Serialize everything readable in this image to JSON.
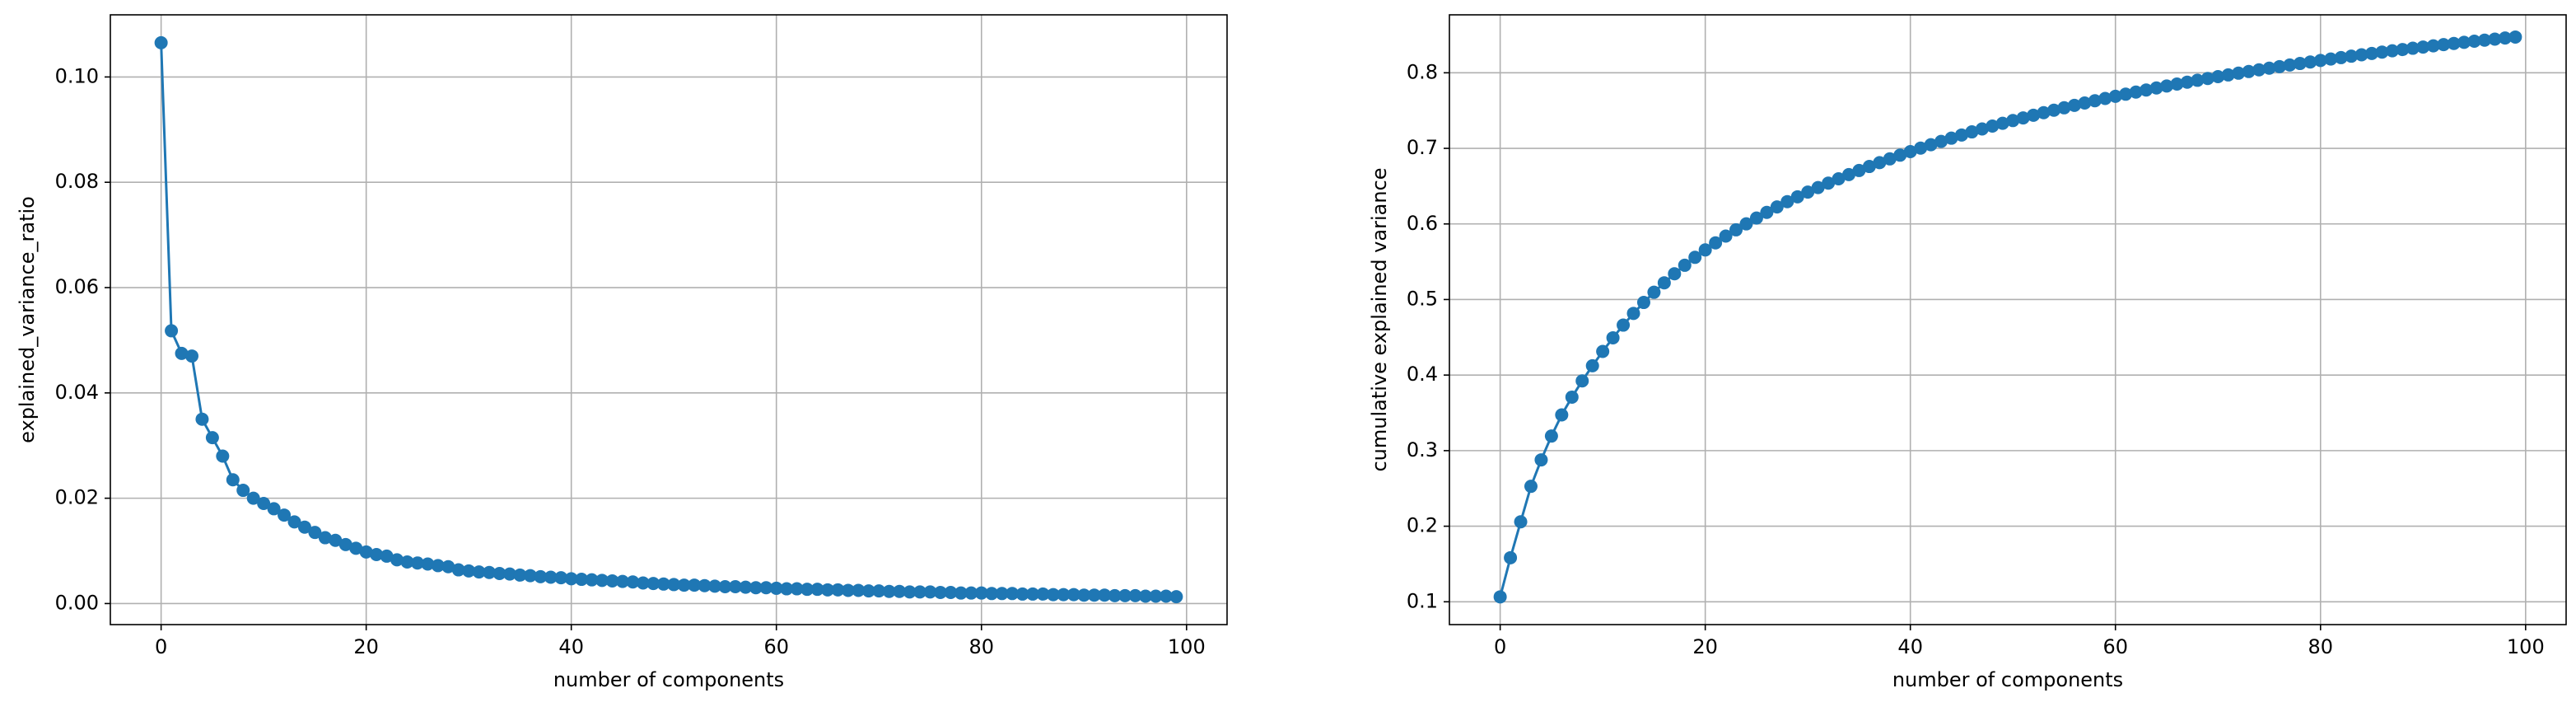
{
  "chart_data": [
    {
      "type": "line",
      "xlabel": "number of components",
      "ylabel": "explained_variance_ratio",
      "grid": true,
      "xlim": [
        -4.95,
        103.95
      ],
      "xticks": [
        0,
        20,
        40,
        60,
        80,
        100
      ],
      "ylim": [
        -0.004,
        0.1118
      ],
      "yticks": [
        {
          "value": 0,
          "label": "0.00"
        },
        {
          "value": 0.02,
          "label": "0.02"
        },
        {
          "value": 0.04,
          "label": "0.04"
        },
        {
          "value": 0.06,
          "label": "0.06"
        },
        {
          "value": 0.08,
          "label": "0.08"
        },
        {
          "value": 0.1,
          "label": "0.10"
        }
      ],
      "x": [
        0,
        1,
        2,
        3,
        4,
        5,
        6,
        7,
        8,
        9,
        10,
        11,
        12,
        13,
        14,
        15,
        16,
        17,
        18,
        19,
        20,
        21,
        22,
        23,
        24,
        25,
        26,
        27,
        28,
        29,
        30,
        31,
        32,
        33,
        34,
        35,
        36,
        37,
        38,
        39,
        40,
        41,
        42,
        43,
        44,
        45,
        46,
        47,
        48,
        49,
        50,
        51,
        52,
        53,
        54,
        55,
        56,
        57,
        58,
        59,
        60,
        61,
        62,
        63,
        64,
        65,
        66,
        67,
        68,
        69,
        70,
        71,
        72,
        73,
        74,
        75,
        76,
        77,
        78,
        79,
        80,
        81,
        82,
        83,
        84,
        85,
        86,
        87,
        88,
        89,
        90,
        91,
        92,
        93,
        94,
        95,
        96,
        97,
        98,
        99
      ],
      "series": [
        {
          "color": "#1f77b4",
          "values": [
            0.1065,
            0.0518,
            0.0475,
            0.047,
            0.035,
            0.0315,
            0.028,
            0.0235,
            0.0215,
            0.02,
            0.019,
            0.018,
            0.0168,
            0.0155,
            0.0145,
            0.0135,
            0.0125,
            0.012,
            0.0112,
            0.0105,
            0.0098,
            0.0093,
            0.009,
            0.0083,
            0.0079,
            0.0077,
            0.0075,
            0.0072,
            0.007,
            0.0064,
            0.0062,
            0.006,
            0.0059,
            0.0057,
            0.0056,
            0.0054,
            0.0053,
            0.0051,
            0.005,
            0.0049,
            0.0047,
            0.0046,
            0.0045,
            0.0044,
            0.0043,
            0.0042,
            0.0041,
            0.0039,
            0.0038,
            0.0037,
            0.0036,
            0.0035,
            0.0035,
            0.0034,
            0.0033,
            0.0032,
            0.0032,
            0.0031,
            0.003,
            0.003,
            0.0029,
            0.0028,
            0.0028,
            0.0027,
            0.0027,
            0.0026,
            0.0026,
            0.0025,
            0.0025,
            0.0024,
            0.0024,
            0.0023,
            0.0023,
            0.0022,
            0.0022,
            0.0022,
            0.0021,
            0.0021,
            0.002,
            0.002,
            0.002,
            0.0019,
            0.0019,
            0.0019,
            0.0018,
            0.0018,
            0.0018,
            0.0017,
            0.0017,
            0.0017,
            0.0016,
            0.0016,
            0.0016,
            0.0015,
            0.0015,
            0.0015,
            0.0014,
            0.0014,
            0.0014,
            0.0013
          ]
        }
      ]
    },
    {
      "type": "line",
      "xlabel": "number of components",
      "ylabel": "cumulative explained variance",
      "grid": true,
      "xlim": [
        -4.95,
        103.95
      ],
      "xticks": [
        0,
        20,
        40,
        60,
        80,
        100
      ],
      "ylim": [
        0.0698,
        0.8767
      ],
      "yticks": [
        0.1,
        0.2,
        0.3,
        0.4,
        0.5,
        0.6,
        0.7,
        0.8
      ],
      "x": [
        0,
        1,
        2,
        3,
        4,
        5,
        6,
        7,
        8,
        9,
        10,
        11,
        12,
        13,
        14,
        15,
        16,
        17,
        18,
        19,
        20,
        21,
        22,
        23,
        24,
        25,
        26,
        27,
        28,
        29,
        30,
        31,
        32,
        33,
        34,
        35,
        36,
        37,
        38,
        39,
        40,
        41,
        42,
        43,
        44,
        45,
        46,
        47,
        48,
        49,
        50,
        51,
        52,
        53,
        54,
        55,
        56,
        57,
        58,
        59,
        60,
        61,
        62,
        63,
        64,
        65,
        66,
        67,
        68,
        69,
        70,
        71,
        72,
        73,
        74,
        75,
        76,
        77,
        78,
        79,
        80,
        81,
        82,
        83,
        84,
        85,
        86,
        87,
        88,
        89,
        90,
        91,
        92,
        93,
        94,
        95,
        96,
        97,
        98,
        99
      ],
      "series": [
        {
          "color": "#1f77b4",
          "values": [
            0.1065,
            0.1583,
            0.2058,
            0.2528,
            0.2878,
            0.3193,
            0.3473,
            0.3708,
            0.3923,
            0.4123,
            0.4313,
            0.4493,
            0.4661,
            0.4816,
            0.4961,
            0.5096,
            0.5221,
            0.5341,
            0.5453,
            0.5558,
            0.5656,
            0.5749,
            0.5839,
            0.5922,
            0.6001,
            0.6078,
            0.6153,
            0.6225,
            0.6295,
            0.6359,
            0.6421,
            0.6481,
            0.654,
            0.6597,
            0.6653,
            0.6707,
            0.676,
            0.6811,
            0.6861,
            0.691,
            0.6957,
            0.7003,
            0.7048,
            0.7092,
            0.7135,
            0.7177,
            0.7218,
            0.7257,
            0.7295,
            0.7332,
            0.7368,
            0.7403,
            0.7438,
            0.7472,
            0.7505,
            0.7537,
            0.7569,
            0.76,
            0.763,
            0.766,
            0.7689,
            0.7717,
            0.7745,
            0.7772,
            0.7799,
            0.7825,
            0.7851,
            0.7876,
            0.7901,
            0.7925,
            0.7949,
            0.7972,
            0.7995,
            0.8017,
            0.8039,
            0.8061,
            0.8082,
            0.8103,
            0.8123,
            0.8143,
            0.8163,
            0.8182,
            0.8201,
            0.822,
            0.8238,
            0.8256,
            0.8274,
            0.8291,
            0.8308,
            0.8325,
            0.8341,
            0.8357,
            0.8373,
            0.8388,
            0.8403,
            0.8418,
            0.8432,
            0.8446,
            0.846,
            0.8473
          ]
        }
      ]
    }
  ]
}
